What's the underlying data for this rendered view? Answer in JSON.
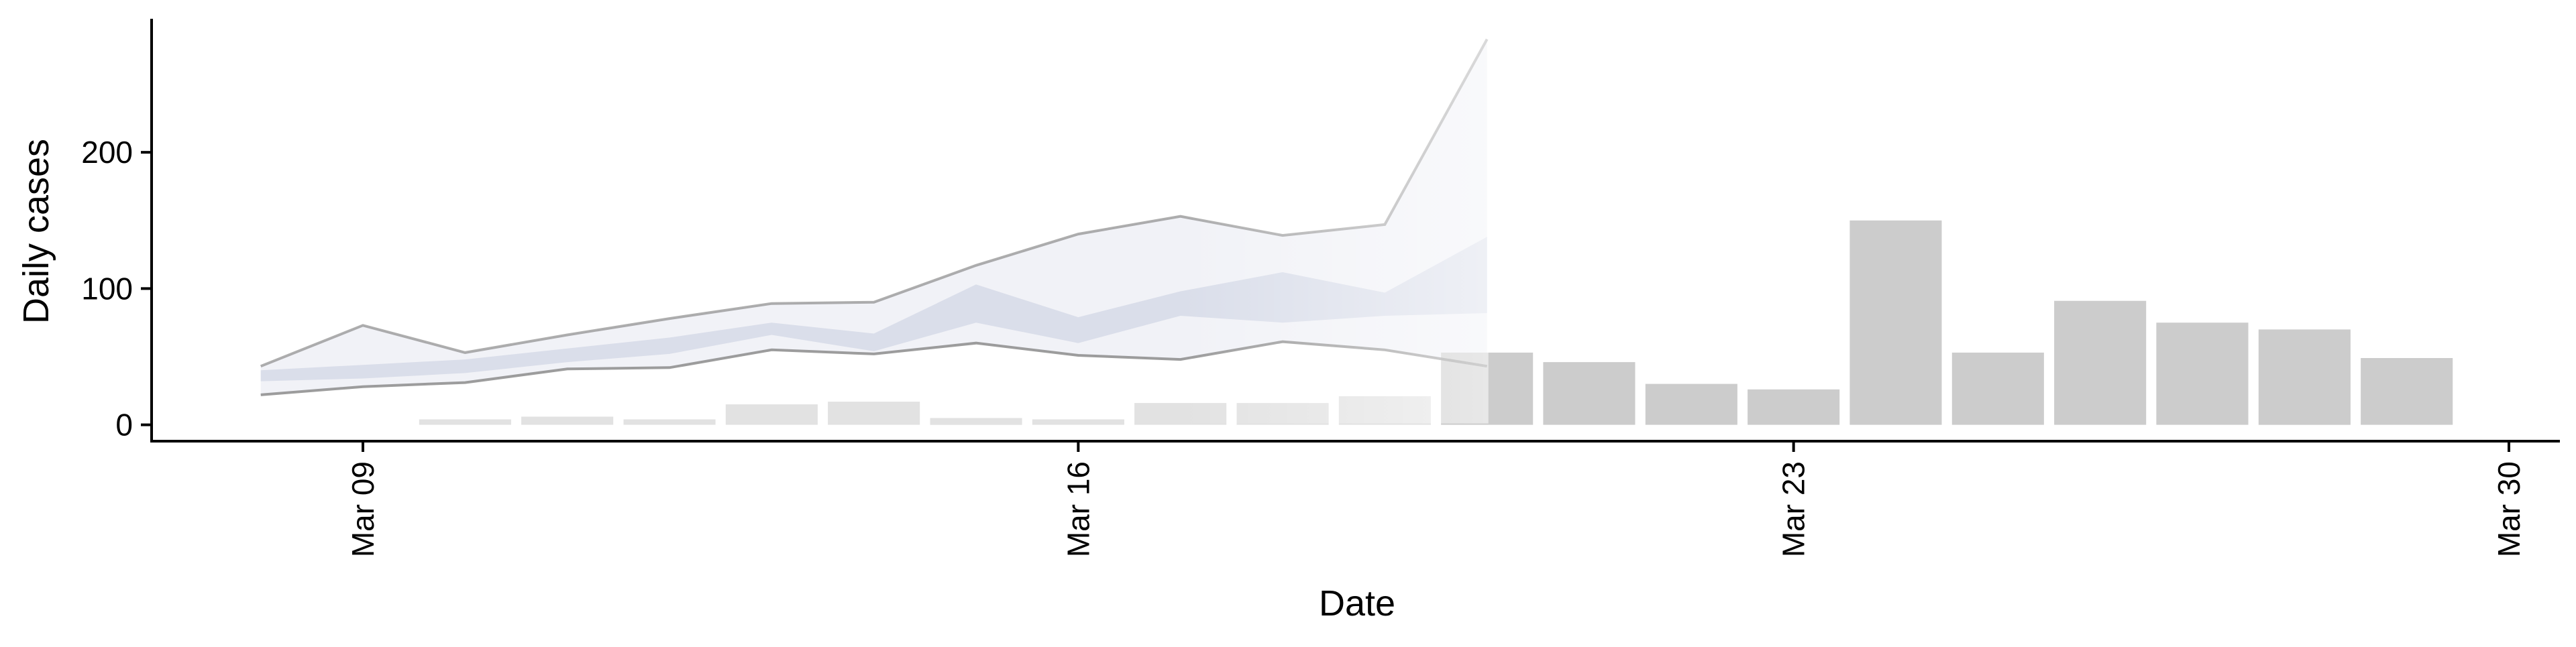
{
  "chart_data": {
    "type": "bar",
    "title": "",
    "xlabel": "Date",
    "ylabel": "Daily cases",
    "x_ticks": [
      "Mar 09",
      "Mar 16",
      "Mar 23",
      "Mar 30"
    ],
    "y_ticks": [
      "0",
      "100",
      "200"
    ],
    "ylim": [
      -12,
      298
    ],
    "xlim": [
      "2020-03-07",
      "2020-03-30"
    ],
    "grid": false,
    "legend": "none",
    "bars": {
      "dates": [
        "2020-03-10",
        "2020-03-11",
        "2020-03-12",
        "2020-03-13",
        "2020-03-14",
        "2020-03-15",
        "2020-03-16",
        "2020-03-17",
        "2020-03-18",
        "2020-03-19",
        "2020-03-20",
        "2020-03-21",
        "2020-03-22",
        "2020-03-23",
        "2020-03-24",
        "2020-03-25",
        "2020-03-26",
        "2020-03-27",
        "2020-03-28",
        "2020-03-29"
      ],
      "values": [
        4,
        6,
        4,
        15,
        17,
        5,
        4,
        16,
        16,
        21,
        53,
        46,
        30,
        26,
        150,
        53,
        91,
        75,
        70,
        49
      ],
      "faded_until": "2020-03-19"
    },
    "forecast": {
      "dates": [
        "2020-03-08",
        "2020-03-09",
        "2020-03-10",
        "2020-03-11",
        "2020-03-12",
        "2020-03-13",
        "2020-03-14",
        "2020-03-15",
        "2020-03-16",
        "2020-03-17",
        "2020-03-18",
        "2020-03-19",
        "2020-03-20"
      ],
      "outer_upper": [
        43,
        73,
        53,
        66,
        78,
        89,
        90,
        117,
        140,
        153,
        139,
        147,
        283
      ],
      "outer_lower": [
        22,
        28,
        31,
        41,
        42,
        55,
        52,
        60,
        51,
        48,
        61,
        55,
        43
      ],
      "inner_upper": [
        40,
        44,
        48,
        56,
        64,
        75,
        67,
        103,
        79,
        98,
        112,
        97,
        138
      ],
      "inner_lower": [
        32,
        34,
        38,
        46,
        52,
        66,
        54,
        75,
        60,
        80,
        75,
        80,
        82
      ]
    },
    "colors": {
      "bar": "#cccccc",
      "bar_faded": "#e2e2e2",
      "outer_band": "#eff0f6",
      "inner_band": "#d4d8e6",
      "bound_line": "#8c8c8c"
    }
  }
}
